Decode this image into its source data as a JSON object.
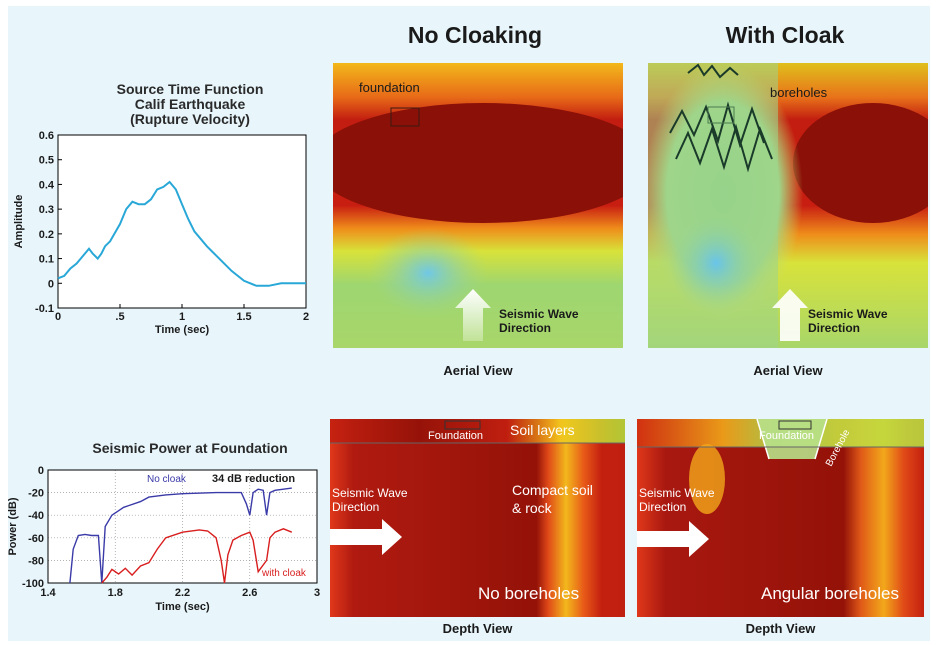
{
  "headings": {
    "no_cloak": "No Cloaking",
    "with_cloak": "With Cloak"
  },
  "captions": {
    "aerial_left": "Aerial View",
    "aerial_right": "Aerial View",
    "depth_left": "Depth View",
    "depth_right": "Depth View"
  },
  "labels": {
    "foundation": "foundation",
    "boreholes": "boreholes",
    "seismic_wave": "Seismic Wave",
    "direction": "Direction",
    "foundation_cap": "Foundation",
    "soil_layers": "Soil layers",
    "compact_soil": "Compact soil",
    "and_rock": "& rock",
    "no_boreholes": "No boreholes",
    "angular_boreholes": "Angular boreholes",
    "borehole": "Borehole"
  },
  "chart_data": [
    {
      "type": "line",
      "title": [
        "Source Time Function",
        "Calif Earthquake",
        "(Rupture Velocity)"
      ],
      "xlabel": "Time (sec)",
      "ylabel": "Amplitude",
      "xlim": [
        0,
        2
      ],
      "ylim": [
        -0.1,
        0.6
      ],
      "xticks": [
        0,
        0.5,
        1,
        1.5,
        2
      ],
      "xtick_labels": [
        "0",
        ".5",
        "1",
        "1.5",
        "2"
      ],
      "yticks": [
        -0.1,
        0,
        0.1,
        0.2,
        0.3,
        0.4,
        0.5,
        0.6
      ],
      "ytick_labels": [
        "-0.1",
        "0",
        "0.1",
        "0.2",
        "0.3",
        "0.4",
        "0.5",
        "0.6"
      ],
      "grid": false,
      "color": "#29a8d8",
      "x": [
        0,
        0.05,
        0.1,
        0.15,
        0.2,
        0.25,
        0.28,
        0.32,
        0.35,
        0.38,
        0.42,
        0.5,
        0.55,
        0.6,
        0.65,
        0.7,
        0.75,
        0.8,
        0.85,
        0.9,
        0.95,
        1.0,
        1.05,
        1.1,
        1.2,
        1.3,
        1.4,
        1.5,
        1.6,
        1.7,
        1.8,
        1.9,
        2.0
      ],
      "y": [
        0.02,
        0.03,
        0.06,
        0.08,
        0.11,
        0.14,
        0.12,
        0.1,
        0.12,
        0.15,
        0.17,
        0.24,
        0.3,
        0.33,
        0.32,
        0.32,
        0.34,
        0.38,
        0.39,
        0.41,
        0.38,
        0.32,
        0.26,
        0.21,
        0.15,
        0.1,
        0.05,
        0.01,
        -0.01,
        -0.01,
        0.0,
        0.0,
        0.0
      ]
    },
    {
      "type": "line",
      "title": "Seismic Power at Foundation",
      "xlabel": "Time (sec)",
      "ylabel": "Power (dB)",
      "xlim": [
        1.4,
        3
      ],
      "ylim": [
        -100,
        0
      ],
      "xticks": [
        1.4,
        1.8,
        2.2,
        2.6,
        3
      ],
      "xtick_labels": [
        "1.4",
        "1.8",
        "2.2",
        "2.6",
        "3"
      ],
      "yticks": [
        0,
        -20,
        -40,
        -60,
        -80,
        -100
      ],
      "ytick_labels": [
        "0",
        "-20",
        "-40",
        "-60",
        "-80",
        "-100"
      ],
      "grid": true,
      "annotation": "34 dB reduction",
      "series": [
        {
          "name": "No cloak",
          "color": "#3a3aa8",
          "x": [
            1.53,
            1.55,
            1.58,
            1.62,
            1.66,
            1.7,
            1.72,
            1.74,
            1.78,
            1.85,
            1.95,
            2.0,
            2.1,
            2.2,
            2.4,
            2.5,
            2.55,
            2.58,
            2.6,
            2.62,
            2.65,
            2.68,
            2.7,
            2.72,
            2.75,
            2.8,
            2.85
          ],
          "y": [
            -100,
            -70,
            -58,
            -57,
            -58,
            -58,
            -100,
            -50,
            -40,
            -33,
            -28,
            -24,
            -22,
            -21,
            -20,
            -20,
            -20,
            -30,
            -40,
            -20,
            -17,
            -18,
            -40,
            -20,
            -18,
            -17,
            -16
          ]
        },
        {
          "name": "with cloak",
          "color": "#d81e1e",
          "x": [
            1.72,
            1.75,
            1.78,
            1.82,
            1.86,
            1.9,
            1.95,
            2.0,
            2.05,
            2.1,
            2.2,
            2.3,
            2.35,
            2.4,
            2.43,
            2.45,
            2.47,
            2.5,
            2.55,
            2.6,
            2.62,
            2.65,
            2.7,
            2.72,
            2.75,
            2.8,
            2.85
          ],
          "y": [
            -100,
            -95,
            -88,
            -92,
            -87,
            -93,
            -85,
            -82,
            -70,
            -60,
            -55,
            -53,
            -54,
            -60,
            -80,
            -100,
            -75,
            -62,
            -58,
            -55,
            -62,
            -90,
            -80,
            -60,
            -55,
            -52,
            -55
          ]
        }
      ]
    }
  ]
}
